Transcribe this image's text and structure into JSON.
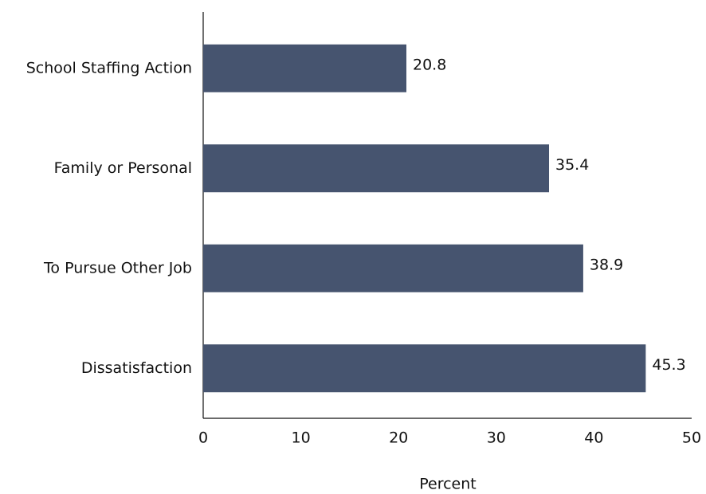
{
  "chart_data": {
    "type": "barh",
    "categories": [
      "School Staffing Action",
      "Family or Personal",
      "To Pursue Other Job",
      "Dissatisfaction"
    ],
    "values": [
      20.8,
      35.4,
      38.9,
      45.3
    ],
    "color": "#46546f",
    "x_label": "Percent",
    "xlim": [
      0,
      50
    ],
    "xticks": [
      0,
      10,
      20,
      30,
      40,
      50
    ],
    "grid": false
  }
}
